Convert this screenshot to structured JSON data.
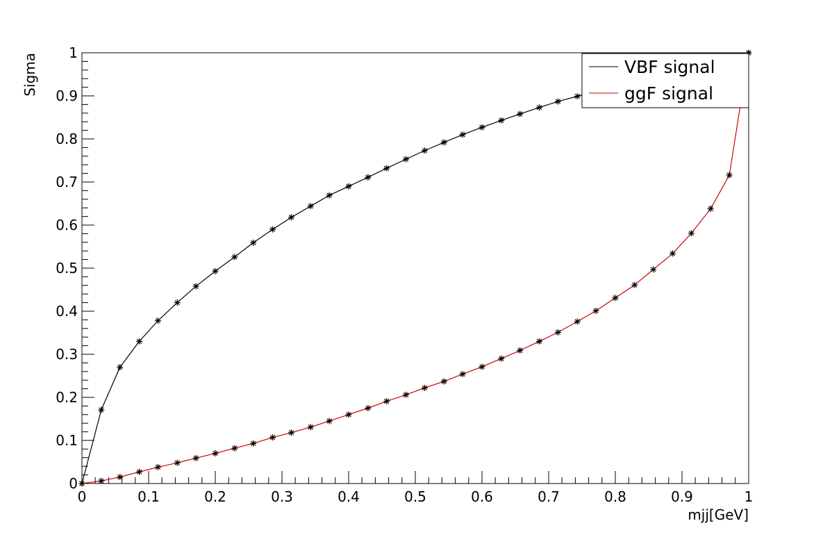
{
  "chart_data": {
    "type": "line",
    "title": "",
    "xlabel": "mjj[GeV]",
    "ylabel": "Sigma",
    "xlim": [
      0,
      1
    ],
    "ylim": [
      0,
      1
    ],
    "grid": false,
    "legend_position": "top-right",
    "x_ticks": [
      "0",
      "0.1",
      "0.2",
      "0.3",
      "0.4",
      "0.5",
      "0.6",
      "0.7",
      "0.8",
      "0.9",
      "1"
    ],
    "y_ticks": [
      "0",
      "0.1",
      "0.2",
      "0.3",
      "0.4",
      "0.5",
      "0.6",
      "0.7",
      "0.8",
      "0.9",
      "1"
    ],
    "series": [
      {
        "name": "VBF signal",
        "color": "#000000",
        "x": [
          0,
          0.029,
          0.057,
          0.086,
          0.114,
          0.143,
          0.171,
          0.2,
          0.229,
          0.257,
          0.286,
          0.314,
          0.343,
          0.371,
          0.4,
          0.429,
          0.457,
          0.486,
          0.514,
          0.543,
          0.571,
          0.6,
          0.629,
          0.657,
          0.686,
          0.714,
          0.743,
          0.771,
          0.8,
          0.829,
          0.857,
          0.886,
          0.914,
          0.943,
          0.971,
          1.0
        ],
        "y": [
          0,
          0.171,
          0.27,
          0.33,
          0.378,
          0.42,
          0.458,
          0.493,
          0.526,
          0.559,
          0.59,
          0.618,
          0.644,
          0.669,
          0.69,
          0.711,
          0.732,
          0.753,
          0.773,
          0.792,
          0.81,
          0.827,
          0.843,
          0.858,
          0.873,
          0.887,
          0.899,
          0.912,
          0.924,
          0.936,
          0.948,
          0.959,
          0.97,
          0.981,
          0.99,
          1.0
        ]
      },
      {
        "name": "ggF signal",
        "color": "#cc0000",
        "x": [
          0,
          0.029,
          0.057,
          0.086,
          0.114,
          0.143,
          0.171,
          0.2,
          0.229,
          0.257,
          0.286,
          0.314,
          0.343,
          0.371,
          0.4,
          0.429,
          0.457,
          0.486,
          0.514,
          0.543,
          0.571,
          0.6,
          0.629,
          0.657,
          0.686,
          0.714,
          0.743,
          0.771,
          0.8,
          0.829,
          0.857,
          0.886,
          0.914,
          0.943,
          0.971,
          1.0
        ],
        "y": [
          0,
          0.006,
          0.015,
          0.027,
          0.038,
          0.048,
          0.059,
          0.07,
          0.082,
          0.093,
          0.107,
          0.118,
          0.131,
          0.145,
          0.16,
          0.175,
          0.191,
          0.206,
          0.222,
          0.237,
          0.254,
          0.271,
          0.29,
          0.309,
          0.33,
          0.351,
          0.376,
          0.401,
          0.431,
          0.461,
          0.497,
          0.534,
          0.581,
          0.638,
          0.716,
          1.0
        ]
      }
    ]
  }
}
